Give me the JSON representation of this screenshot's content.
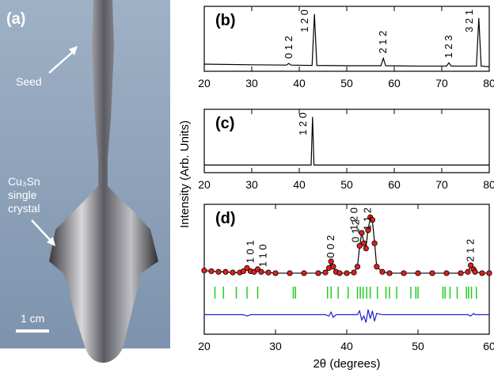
{
  "photo": {
    "panel_label": "(a)",
    "seed_label": "Seed",
    "crystal_label": [
      "Cu₃Sn",
      "single",
      "crystal"
    ],
    "scale_label": "1 cm"
  },
  "y_axis_label": "Intensity (Arb. Units)",
  "chart_data": [
    {
      "type": "line",
      "panel_label": "(b)",
      "xlim": [
        20,
        80
      ],
      "xticks": [
        20,
        30,
        40,
        50,
        60,
        70,
        80
      ],
      "ylim": [
        0,
        100
      ],
      "x": [
        20,
        30,
        37.3,
        37.8,
        38.3,
        42.7,
        43.2,
        43.7,
        50,
        57.2,
        57.7,
        58.2,
        65,
        71,
        71.5,
        72,
        77.3,
        77.8,
        78.3,
        80
      ],
      "series": [
        {
          "color": "#000000",
          "values": [
            11,
            10,
            9.5,
            12,
            9.5,
            9,
            88,
            9,
            8.5,
            8.5,
            20,
            8.5,
            8,
            8,
            13,
            8,
            8,
            82,
            8,
            7
          ]
        }
      ],
      "annotations": [
        {
          "text": "0 1 2",
          "x": 37.8
        },
        {
          "text": "1 2 0",
          "x": 43.2
        },
        {
          "text": "2 1 2",
          "x": 57.7
        },
        {
          "text": "1 2 3",
          "x": 71.5
        },
        {
          "text": "3 2 1",
          "x": 77.8
        }
      ]
    },
    {
      "type": "line",
      "panel_label": "(c)",
      "xlim": [
        20,
        80
      ],
      "xticks": [
        20,
        30,
        40,
        50,
        60,
        70,
        80
      ],
      "ylim": [
        0,
        100
      ],
      "x": [
        20,
        42.5,
        42.8,
        43.1,
        80
      ],
      "series": [
        {
          "color": "#000000",
          "values": [
            12,
            12,
            88,
            12,
            12
          ]
        }
      ],
      "annotations": [
        {
          "text": "1 2 0",
          "x": 42.8
        }
      ]
    },
    {
      "type": "line",
      "panel_label": "(d)",
      "x_label": "2θ (degrees)",
      "xlim": [
        20,
        60
      ],
      "xticks": [
        20,
        30,
        40,
        50,
        60
      ],
      "ylim": [
        0,
        100
      ],
      "x": [
        20,
        21,
        22,
        23,
        24,
        25,
        25.5,
        26,
        26.5,
        27,
        27.5,
        28,
        29,
        30,
        32,
        34,
        36,
        37,
        37.5,
        37.8,
        38.1,
        38.5,
        39,
        40,
        41,
        41.5,
        41.8,
        42.1,
        42.4,
        42.7,
        43,
        43.3,
        43.6,
        43.9,
        44.2,
        45,
        46,
        48,
        50,
        52,
        54,
        56,
        57,
        57.4,
        57.8,
        58,
        59,
        60
      ],
      "series": [
        {
          "style": "line",
          "color": "#000000",
          "values": [
            49,
            48.5,
            48,
            48,
            47.5,
            47.5,
            48.5,
            51,
            48.5,
            48,
            50,
            48,
            47.5,
            47,
            47,
            47,
            47,
            47.5,
            51,
            55,
            52,
            48,
            47,
            47,
            47.5,
            52,
            67,
            78,
            71,
            67,
            81,
            89,
            87,
            71,
            52,
            48,
            47,
            47,
            47,
            47,
            47,
            47,
            48,
            52,
            50,
            48,
            47,
            47
          ]
        },
        {
          "style": "circle",
          "color": "#e0201b",
          "values": [
            49,
            48.5,
            48,
            48,
            47.5,
            47.5,
            48.5,
            51,
            48.5,
            48,
            50,
            48,
            47.5,
            47,
            47,
            47,
            47,
            47.5,
            51,
            56,
            52,
            48,
            47,
            47,
            47.5,
            52,
            68,
            78,
            70,
            66,
            80,
            90,
            88,
            70,
            52,
            48,
            47,
            47,
            47,
            47,
            47,
            47,
            48,
            53,
            50,
            48,
            47,
            47
          ]
        },
        {
          "style": "line",
          "color": "#1f1fd6",
          "values": [
            15,
            15,
            15,
            15,
            15,
            15,
            15,
            14,
            15,
            15,
            15,
            15,
            15,
            15,
            15,
            15,
            15,
            15,
            14,
            17,
            13,
            15,
            15,
            15,
            15,
            15,
            18,
            11,
            14,
            9,
            19,
            12,
            18,
            10,
            16,
            15,
            15,
            15,
            15,
            15,
            15,
            15,
            15,
            14,
            16,
            15,
            15,
            15
          ]
        },
        {
          "style": "tick",
          "color": "#22cc22",
          "x": [
            21.5,
            22.7,
            24.5,
            26,
            27.5,
            32.5,
            32.8,
            37.3,
            37.8,
            38.8,
            40.2,
            41.5,
            41.9,
            42.3,
            42.8,
            43.3,
            44.3,
            45.5,
            46,
            47,
            49,
            49.7,
            50,
            53.5,
            53.8,
            54.5,
            55.5,
            56.8,
            57.1,
            57.5,
            58.2
          ]
        }
      ],
      "annotations": [
        {
          "text": "1 0 1",
          "x": 26.5
        },
        {
          "text": "1 1 0",
          "x": 28.3
        },
        {
          "text": "0 0 2",
          "x": 37.8
        },
        {
          "text": "0 1 2",
          "x": 41.3
        },
        {
          "text": "1 2 0",
          "x": 42.4
        },
        {
          "text": "1 1 2",
          "x": 44.3
        },
        {
          "text": "2 1 2",
          "x": 57.4
        }
      ]
    }
  ]
}
